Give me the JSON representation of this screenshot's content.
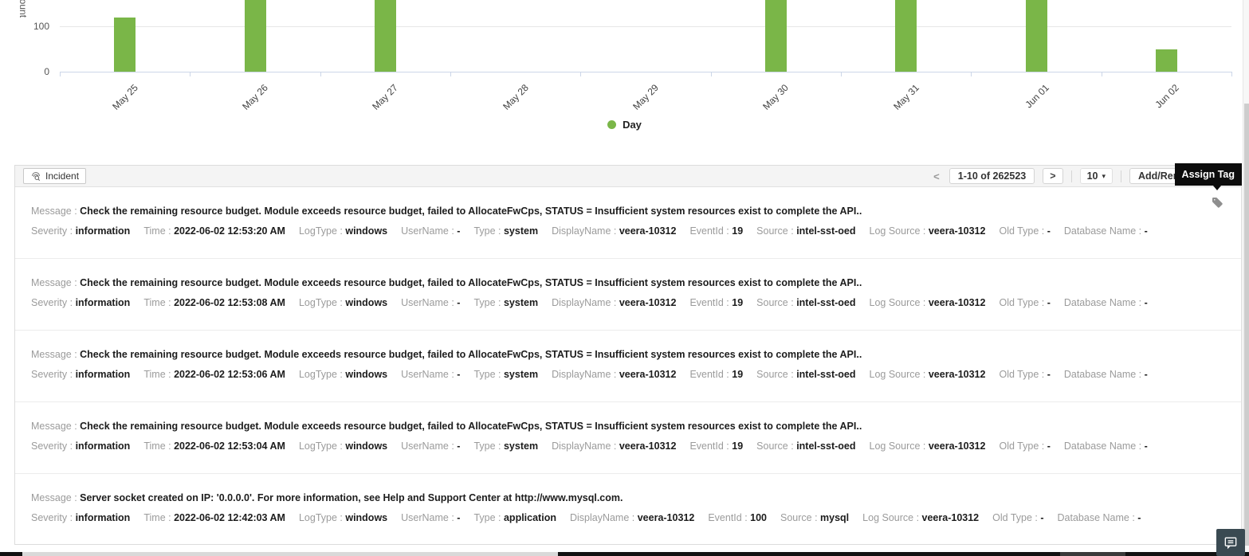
{
  "chart_data": {
    "type": "bar",
    "title": "",
    "ylabel": "Count",
    "xlabel": "Day",
    "categories": [
      "May 25",
      "May 26",
      "May 27",
      "May 28",
      "May 29",
      "May 30",
      "May 31",
      "Jun 01",
      "Jun 02"
    ],
    "values": [
      120,
      165,
      165,
      0,
      0,
      165,
      165,
      165,
      50
    ],
    "clipped_above_view": [
      false,
      true,
      true,
      false,
      false,
      true,
      true,
      true,
      false
    ],
    "yticks_visible": [
      0,
      100
    ],
    "bar_color": "#7ab648",
    "legend": [
      {
        "label": "Day",
        "color": "#7ab648"
      }
    ],
    "note": "Chart is cropped at the top of the screenshot; values flagged clipped_above_view are minimum estimates for bars cut off by the viewport edge."
  },
  "toolbar": {
    "incident_button": "Incident",
    "prev_icon": "<",
    "next_icon": ">",
    "page_range": "1-10 of 262523",
    "page_size": "10",
    "page_size_caret": "▾",
    "add_remove_button": "Add/Remov",
    "assign_tag_tooltip": "Assign Tag"
  },
  "labels": {
    "message": "Message",
    "separator": " : ",
    "fields": [
      {
        "key": "severity",
        "label": "Severity"
      },
      {
        "key": "time",
        "label": "Time"
      },
      {
        "key": "logtype",
        "label": "LogType"
      },
      {
        "key": "username",
        "label": "UserName"
      },
      {
        "key": "type",
        "label": "Type"
      },
      {
        "key": "displayname",
        "label": "DisplayName"
      },
      {
        "key": "eventid",
        "label": "EventId"
      },
      {
        "key": "source",
        "label": "Source"
      },
      {
        "key": "logsource",
        "label": "Log Source"
      },
      {
        "key": "oldtype",
        "label": "Old Type"
      },
      {
        "key": "dbname",
        "label": "Database Name"
      }
    ]
  },
  "entries": [
    {
      "message": "Check the remaining resource budget. Module exceeds resource budget, failed to AllocateFwCps, STATUS = Insufficient system resources exist to complete the API..",
      "severity": "information",
      "time": "2022-06-02 12:53:20 AM",
      "logtype": "windows",
      "username": "-",
      "type": "system",
      "displayname": "veera-10312",
      "eventid": "19",
      "source": "intel-sst-oed",
      "logsource": "veera-10312",
      "oldtype": "-",
      "dbname": "-"
    },
    {
      "message": "Check the remaining resource budget. Module exceeds resource budget, failed to AllocateFwCps, STATUS = Insufficient system resources exist to complete the API..",
      "severity": "information",
      "time": "2022-06-02 12:53:08 AM",
      "logtype": "windows",
      "username": "-",
      "type": "system",
      "displayname": "veera-10312",
      "eventid": "19",
      "source": "intel-sst-oed",
      "logsource": "veera-10312",
      "oldtype": "-",
      "dbname": "-"
    },
    {
      "message": "Check the remaining resource budget. Module exceeds resource budget, failed to AllocateFwCps, STATUS = Insufficient system resources exist to complete the API..",
      "severity": "information",
      "time": "2022-06-02 12:53:06 AM",
      "logtype": "windows",
      "username": "-",
      "type": "system",
      "displayname": "veera-10312",
      "eventid": "19",
      "source": "intel-sst-oed",
      "logsource": "veera-10312",
      "oldtype": "-",
      "dbname": "-"
    },
    {
      "message": "Check the remaining resource budget. Module exceeds resource budget, failed to AllocateFwCps, STATUS = Insufficient system resources exist to complete the API..",
      "severity": "information",
      "time": "2022-06-02 12:53:04 AM",
      "logtype": "windows",
      "username": "-",
      "type": "system",
      "displayname": "veera-10312",
      "eventid": "19",
      "source": "intel-sst-oed",
      "logsource": "veera-10312",
      "oldtype": "-",
      "dbname": "-"
    },
    {
      "message": "Server socket created on IP: '0.0.0.0'.  For more information, see Help and Support Center at http://www.mysql.com.",
      "severity": "information",
      "time": "2022-06-02 12:42:03 AM",
      "logtype": "windows",
      "username": "-",
      "type": "application",
      "displayname": "veera-10312",
      "eventid": "100",
      "source": "mysql",
      "logsource": "veera-10312",
      "oldtype": "-",
      "dbname": "-"
    }
  ],
  "colors": {
    "bar_green": "#7ab648",
    "tooltip_bg": "#0c0c0c",
    "chat_button_bg": "#3a4a52",
    "baseline": "#ccd6e8"
  }
}
